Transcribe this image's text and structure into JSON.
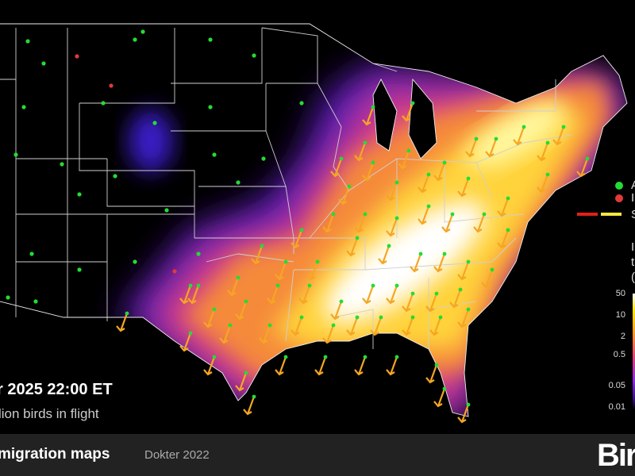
{
  "overlay": {
    "datetime": "r 2025 22:00 ET",
    "birds_in_flight": "lion birds in flight"
  },
  "legend": {
    "items": [
      {
        "label": "A",
        "color": "#22dd33",
        "icon": "green-dot-icon"
      },
      {
        "label": "I",
        "color": "#e03a3a",
        "icon": "red-dot-icon"
      },
      {
        "label": "S",
        "colors": [
          "#e0201a",
          "#f5e642"
        ],
        "icon": "speed-line-icon"
      }
    ],
    "density_title_fragments": [
      "I",
      "t",
      "("
    ],
    "scale_ticks": [
      "50",
      "10",
      "2",
      "0.5",
      "0.05",
      "0.01"
    ],
    "colormap": [
      "#000000",
      "#30107a",
      "#8a2be2",
      "#e0407a",
      "#f9932a",
      "#ffe600",
      "#ffffff"
    ]
  },
  "footer": {
    "title": "migration maps",
    "citation": "Dokter 2022",
    "logo": "Bir"
  },
  "colors": {
    "arrow": "#f5a623",
    "station_active": "#22dd33",
    "station_inactive": "#e03a3a",
    "background": "#000000",
    "footer": "#222222"
  }
}
